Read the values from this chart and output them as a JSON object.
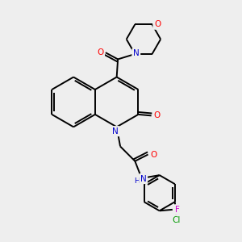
{
  "bg_color": "#eeeeee",
  "bond_color": "#000000",
  "bond_width": 1.4,
  "atom_colors": {
    "N": "#0000cc",
    "O": "#ff0000",
    "Cl": "#009900",
    "F": "#cc00cc",
    "C": "#000000"
  },
  "font_size": 7.5
}
